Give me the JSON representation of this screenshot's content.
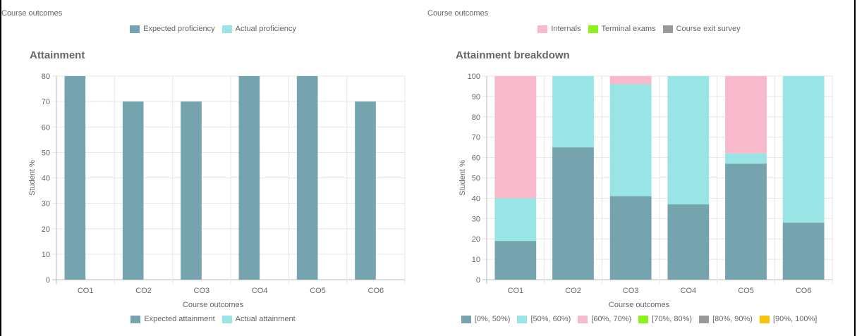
{
  "chart_data": [
    {
      "type": "bar",
      "title": "Attainment",
      "top_axis_label": "Course outcomes",
      "top_legend": [
        {
          "name": "Expected proficiency",
          "color": "#76a4ae"
        },
        {
          "name": "Actual proficiency",
          "color": "#99e5e6"
        }
      ],
      "xlabel": "Course outcomes",
      "ylabel": "Student %",
      "ylim": [
        0,
        80
      ],
      "y_ticks": [
        "0",
        "10",
        "20",
        "30",
        "40",
        "50",
        "60",
        "70",
        "80"
      ],
      "categories": [
        "CO1",
        "CO2",
        "CO3",
        "CO4",
        "CO5",
        "CO6"
      ],
      "series": [
        {
          "name": "Expected attainment",
          "color": "#76a4ae",
          "values": [
            80,
            70,
            70,
            80,
            80,
            70
          ]
        },
        {
          "name": "Actual attainment",
          "color": "#99e5e6",
          "values": [
            0,
            0,
            0,
            0,
            0,
            0
          ]
        }
      ],
      "legend_position": "bottom",
      "grid": true
    },
    {
      "type": "bar",
      "stacked": true,
      "title": "Attainment breakdown",
      "top_axis_label": "Course outcomes",
      "top_legend": [
        {
          "name": "Internals",
          "color": "#f8b9cd"
        },
        {
          "name": "Terminal exams",
          "color": "#8ef01c"
        },
        {
          "name": "Course exit survey",
          "color": "#999999"
        }
      ],
      "xlabel": "Course outcomes",
      "ylabel": "Student %",
      "ylim": [
        0,
        100
      ],
      "y_ticks": [
        "0",
        "10",
        "20",
        "30",
        "40",
        "50",
        "60",
        "70",
        "80",
        "90",
        "100"
      ],
      "categories": [
        "CO1",
        "CO2",
        "CO3",
        "CO4",
        "CO5",
        "CO6"
      ],
      "series": [
        {
          "name": "[0%, 50%)",
          "color": "#76a4ae",
          "values": [
            19,
            65,
            41,
            37,
            57,
            28
          ]
        },
        {
          "name": "[50%, 60%)",
          "color": "#99e5e6",
          "values": [
            21,
            35,
            55,
            63,
            5,
            72
          ]
        },
        {
          "name": "[60%, 70%)",
          "color": "#f8b9cd",
          "values": [
            60,
            0,
            4,
            0,
            38,
            0
          ]
        },
        {
          "name": "[70%, 80%)",
          "color": "#8ef01c",
          "values": [
            0,
            0,
            0,
            0,
            0,
            0
          ]
        },
        {
          "name": "[80%, 90%)",
          "color": "#999999",
          "values": [
            0,
            0,
            0,
            0,
            0,
            0
          ]
        },
        {
          "name": "[90%, 100%]",
          "color": "#f7c20c",
          "values": [
            0,
            0,
            0,
            0,
            0,
            0
          ]
        }
      ],
      "legend_position": "bottom",
      "grid": true
    }
  ]
}
